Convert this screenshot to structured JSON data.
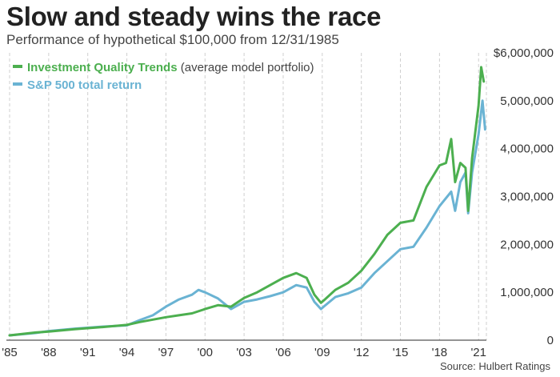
{
  "title": "Slow and steady wins the race",
  "subtitle": "Performance of hypothetical $100,000 from 12/31/1985",
  "source": "Source: Hulbert Ratings",
  "colors": {
    "iqt": "#4caf4f",
    "sp": "#6ab3d3",
    "grid": "#cfcfcf"
  },
  "chart_data": {
    "type": "line",
    "title": "Slow and steady wins the race",
    "subtitle": "Performance of hypothetical $100,000 from 12/31/1985",
    "xlabel": "",
    "ylabel": "",
    "xlim": [
      1985,
      2021.6
    ],
    "ylim": [
      0,
      6000000
    ],
    "y_ticks": [
      0,
      1000000,
      2000000,
      3000000,
      4000000,
      5000000,
      6000000
    ],
    "y_tick_labels": [
      "0",
      "1,000,000",
      "2,000,000",
      "3,000,000",
      "4,000,000",
      "5,000,000",
      "$6,000,000"
    ],
    "x_ticks": [
      1985,
      1988,
      1991,
      1994,
      1997,
      2000,
      2003,
      2006,
      2009,
      2012,
      2015,
      2018,
      2021
    ],
    "x_tick_labels": [
      "'85",
      "'88",
      "'91",
      "'94",
      "'97",
      "'00",
      "'03",
      "'06",
      "'09",
      "'12",
      "'15",
      "'18",
      "'21"
    ],
    "grid": "vertical dashed",
    "legend": "top-left",
    "series": [
      {
        "name": "Investment Quality Trends",
        "legend_note": "(average model portfolio)",
        "x": [
          1985,
          1987,
          1988,
          1990,
          1992,
          1994,
          1995,
          1996,
          1997,
          1998,
          1999,
          2000,
          2001,
          2002,
          2003,
          2004,
          2005,
          2006,
          2007,
          2007.8,
          2008.4,
          2008.9,
          2009.2,
          2010,
          2011,
          2012,
          2013,
          2014,
          2015,
          2016,
          2017,
          2018,
          2018.5,
          2018.9,
          2019.2,
          2019.6,
          2020,
          2020.2,
          2020.5,
          2021,
          2021.2,
          2021.4
        ],
        "y": [
          100000,
          160000,
          180000,
          230000,
          270000,
          320000,
          380000,
          430000,
          480000,
          520000,
          560000,
          650000,
          730000,
          700000,
          880000,
          1000000,
          1150000,
          1300000,
          1400000,
          1300000,
          950000,
          780000,
          850000,
          1050000,
          1200000,
          1450000,
          1800000,
          2200000,
          2450000,
          2500000,
          3200000,
          3650000,
          3700000,
          4200000,
          3300000,
          3700000,
          3600000,
          2700000,
          3800000,
          4900000,
          5700000,
          5400000
        ]
      },
      {
        "name": "S&P 500 total return",
        "x": [
          1985,
          1987,
          1988,
          1990,
          1992,
          1994,
          1995,
          1996,
          1997,
          1998,
          1999,
          1999.5,
          2000,
          2001,
          2002,
          2003,
          2004,
          2005,
          2006,
          2007,
          2007.8,
          2008.4,
          2008.9,
          2009.2,
          2010,
          2011,
          2012,
          2013,
          2014,
          2015,
          2016,
          2017,
          2018,
          2018.9,
          2019.2,
          2019.6,
          2020,
          2020.2,
          2020.5,
          2021,
          2021.3,
          2021.5
        ],
        "y": [
          100000,
          150000,
          190000,
          240000,
          280000,
          310000,
          420000,
          520000,
          700000,
          850000,
          950000,
          1050000,
          1000000,
          870000,
          650000,
          800000,
          850000,
          920000,
          1000000,
          1150000,
          1100000,
          800000,
          650000,
          720000,
          900000,
          980000,
          1100000,
          1400000,
          1650000,
          1900000,
          1950000,
          2350000,
          2800000,
          3100000,
          2700000,
          3300000,
          3500000,
          2650000,
          3500000,
          4300000,
          5000000,
          4400000
        ]
      }
    ]
  }
}
